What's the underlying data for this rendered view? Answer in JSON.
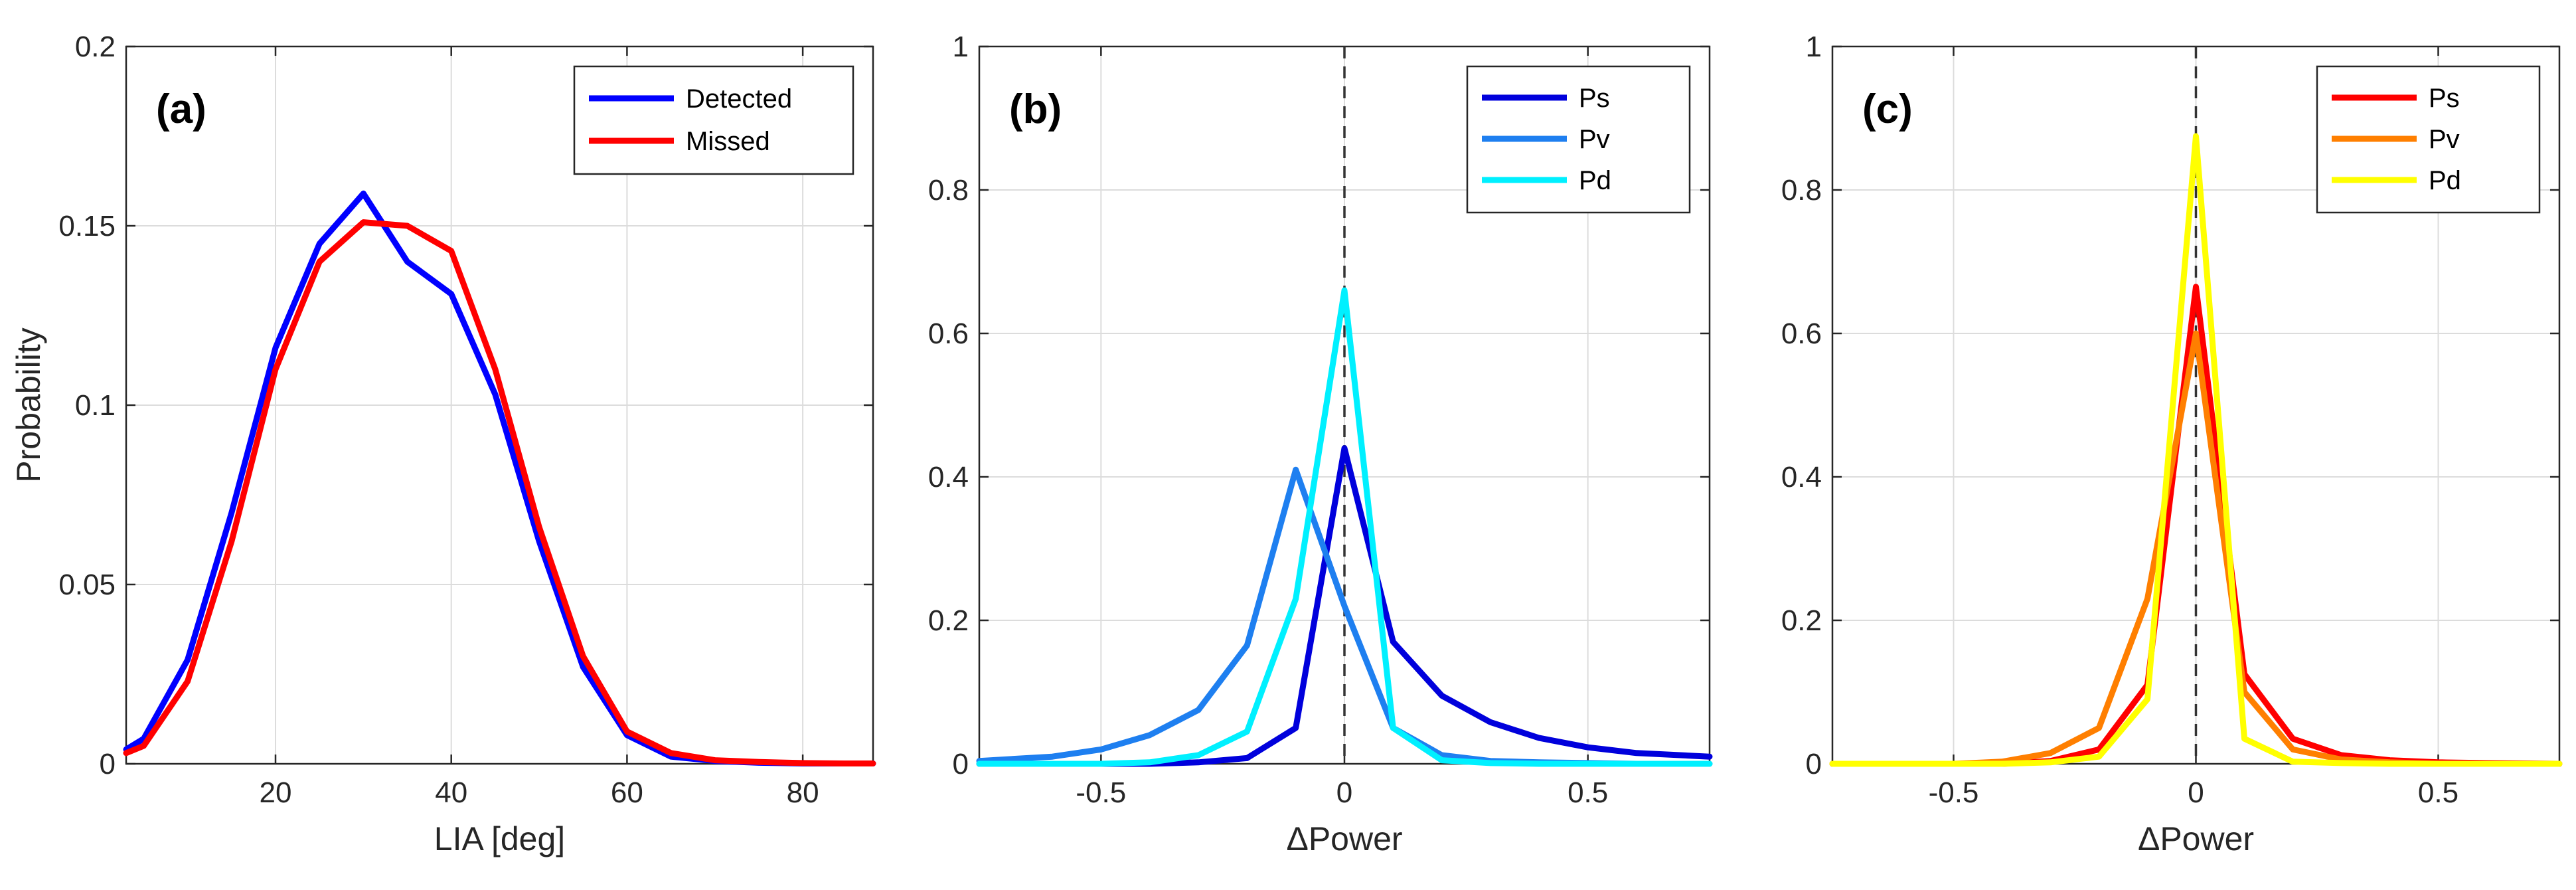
{
  "chart_data": [
    {
      "type": "line",
      "panel_label": "(a)",
      "xlabel": "LIA [deg]",
      "ylabel": "Probability",
      "xlim": [
        3,
        88
      ],
      "ylim": [
        0,
        0.2
      ],
      "xticks": [
        20,
        40,
        60,
        80
      ],
      "xtick_labels": [
        "20",
        "40",
        "60",
        "80"
      ],
      "yticks": [
        0,
        0.05,
        0.1,
        0.15,
        0.2
      ],
      "ytick_labels": [
        "0",
        "0.05",
        "0.1",
        "0.15",
        "0.2"
      ],
      "grid": true,
      "legend_position": "top-right",
      "zero_line": false,
      "x": [
        3,
        5,
        10,
        15,
        20,
        25,
        30,
        35,
        40,
        45,
        50,
        55,
        60,
        65,
        70,
        75,
        80,
        85,
        88
      ],
      "series": [
        {
          "name": "Detected",
          "color": "#0000ff",
          "values": [
            0.004,
            0.007,
            0.029,
            0.07,
            0.116,
            0.145,
            0.159,
            0.14,
            0.131,
            0.103,
            0.062,
            0.027,
            0.008,
            0.002,
            0.0008,
            0.0003,
            0.0001,
            0.0001,
            0.0001
          ]
        },
        {
          "name": "Missed",
          "color": "#ff0000",
          "values": [
            0.003,
            0.005,
            0.023,
            0.062,
            0.11,
            0.14,
            0.151,
            0.15,
            0.143,
            0.11,
            0.066,
            0.03,
            0.009,
            0.003,
            0.001,
            0.0005,
            0.0002,
            0.0001,
            0.0001
          ]
        }
      ]
    },
    {
      "type": "line",
      "panel_label": "(b)",
      "xlabel": "ΔPower",
      "ylabel": "",
      "xlim": [
        -0.75,
        0.75
      ],
      "ylim": [
        0,
        1
      ],
      "xticks": [
        -0.5,
        0,
        0.5
      ],
      "xtick_labels": [
        "-0.5",
        "0",
        "0.5"
      ],
      "yticks": [
        0,
        0.2,
        0.4,
        0.6,
        0.8,
        1
      ],
      "ytick_labels": [
        "0",
        "0.2",
        "0.4",
        "0.6",
        "0.8",
        "1"
      ],
      "grid": true,
      "legend_position": "top-right",
      "zero_line": true,
      "x": [
        -0.75,
        -0.6,
        -0.5,
        -0.4,
        -0.3,
        -0.2,
        -0.1,
        0,
        0.1,
        0.2,
        0.3,
        0.4,
        0.5,
        0.6,
        0.75
      ],
      "series": [
        {
          "name": "Ps",
          "color": "#0000dc",
          "values": [
            0,
            0,
            0,
            0,
            0.002,
            0.008,
            0.05,
            0.44,
            0.17,
            0.095,
            0.058,
            0.036,
            0.023,
            0.015,
            0.01
          ]
        },
        {
          "name": "Pv",
          "color": "#1e7ff0",
          "values": [
            0.004,
            0.01,
            0.02,
            0.04,
            0.075,
            0.165,
            0.41,
            0.22,
            0.05,
            0.012,
            0.004,
            0.002,
            0.001,
            0,
            0
          ]
        },
        {
          "name": "Pd",
          "color": "#00f0ff",
          "values": [
            0,
            0,
            0,
            0.002,
            0.012,
            0.045,
            0.23,
            0.66,
            0.05,
            0.005,
            0.001,
            0,
            0,
            0,
            0
          ]
        }
      ]
    },
    {
      "type": "line",
      "panel_label": "(c)",
      "xlabel": "ΔPower",
      "ylabel": "",
      "xlim": [
        -0.75,
        0.75
      ],
      "ylim": [
        0,
        1
      ],
      "xticks": [
        -0.5,
        0,
        0.5
      ],
      "xtick_labels": [
        "-0.5",
        "0",
        "0.5"
      ],
      "yticks": [
        0,
        0.2,
        0.4,
        0.6,
        0.8,
        1
      ],
      "ytick_labels": [
        "0",
        "0.2",
        "0.4",
        "0.6",
        "0.8",
        "1"
      ],
      "grid": true,
      "legend_position": "top-right",
      "zero_line": true,
      "x": [
        -0.75,
        -0.6,
        -0.5,
        -0.4,
        -0.3,
        -0.2,
        -0.1,
        0,
        0.1,
        0.2,
        0.3,
        0.4,
        0.5,
        0.6,
        0.75
      ],
      "series": [
        {
          "name": "Ps",
          "color": "#ff0000",
          "values": [
            0,
            0,
            0,
            0,
            0.004,
            0.02,
            0.11,
            0.665,
            0.125,
            0.035,
            0.012,
            0.005,
            0.002,
            0.001,
            0
          ]
        },
        {
          "name": "Pv",
          "color": "#ff7f00",
          "values": [
            0,
            0,
            0,
            0.003,
            0.015,
            0.05,
            0.23,
            0.6,
            0.1,
            0.02,
            0.006,
            0.002,
            0,
            0,
            0
          ]
        },
        {
          "name": "Pd",
          "color": "#ffff00",
          "values": [
            0,
            0,
            0,
            0,
            0.002,
            0.01,
            0.09,
            0.875,
            0.035,
            0.003,
            0.001,
            0,
            0,
            0,
            0
          ]
        }
      ]
    }
  ]
}
